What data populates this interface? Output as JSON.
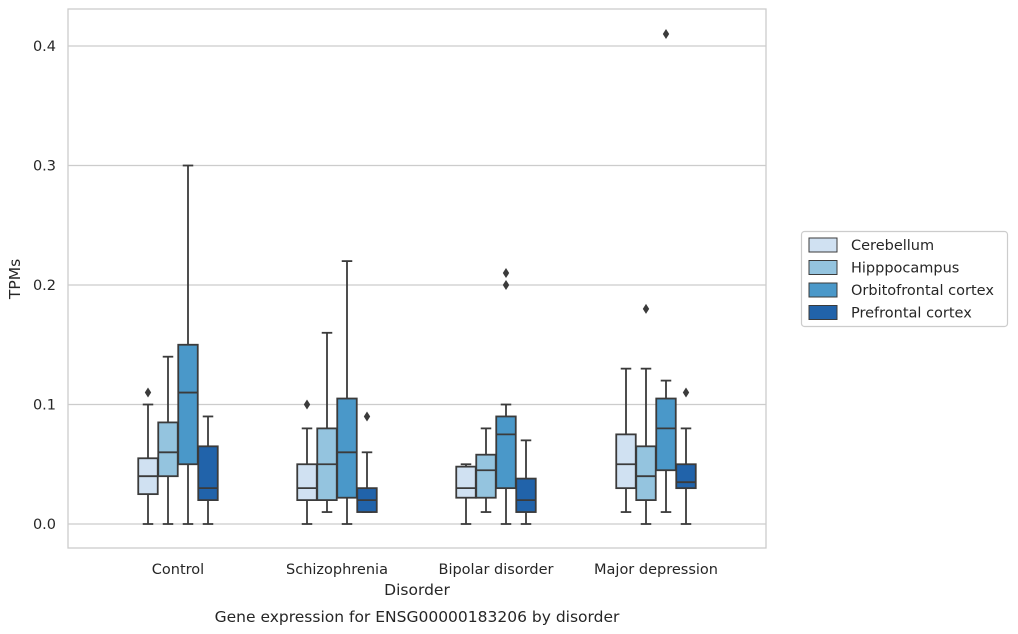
{
  "chart_data": {
    "type": "box",
    "title": "Gene expression for ENSG00000183206 by disorder",
    "xlabel": "Disorder",
    "ylabel": "TPMs",
    "ylim": [
      -0.02,
      0.43
    ],
    "yticks": [
      "0.0",
      "0.1",
      "0.2",
      "0.3",
      "0.4"
    ],
    "ytick_values": [
      0.0,
      0.1,
      0.2,
      0.3,
      0.4
    ],
    "grid": "horizontal",
    "legend_position": "right",
    "categories": [
      "Control",
      "Schizophrenia",
      "Bipolar disorder",
      "Major depression"
    ],
    "series": [
      {
        "name": "Cerebellum",
        "color": "#d0e1f2",
        "boxes": [
          {
            "whislo": 0.0,
            "q1": 0.025,
            "med": 0.04,
            "q3": 0.055,
            "whishi": 0.1,
            "fliers": [
              0.11
            ]
          },
          {
            "whislo": 0.0,
            "q1": 0.02,
            "med": 0.03,
            "q3": 0.05,
            "whishi": 0.08,
            "fliers": [
              0.1
            ]
          },
          {
            "whislo": 0.0,
            "q1": 0.022,
            "med": 0.03,
            "q3": 0.048,
            "whishi": 0.05,
            "fliers": []
          },
          {
            "whislo": 0.01,
            "q1": 0.03,
            "med": 0.05,
            "q3": 0.075,
            "whishi": 0.13,
            "fliers": []
          }
        ]
      },
      {
        "name": "Hipppocampus",
        "color": "#94c4df",
        "boxes": [
          {
            "whislo": 0.0,
            "q1": 0.04,
            "med": 0.06,
            "q3": 0.085,
            "whishi": 0.14,
            "fliers": []
          },
          {
            "whislo": 0.01,
            "q1": 0.02,
            "med": 0.05,
            "q3": 0.08,
            "whishi": 0.16,
            "fliers": []
          },
          {
            "whislo": 0.01,
            "q1": 0.022,
            "med": 0.045,
            "q3": 0.058,
            "whishi": 0.08,
            "fliers": []
          },
          {
            "whislo": 0.0,
            "q1": 0.02,
            "med": 0.04,
            "q3": 0.065,
            "whishi": 0.13,
            "fliers": [
              0.18
            ]
          }
        ]
      },
      {
        "name": "Orbitofrontal cortex",
        "color": "#4a98c9",
        "boxes": [
          {
            "whislo": 0.0,
            "q1": 0.05,
            "med": 0.11,
            "q3": 0.15,
            "whishi": 0.3,
            "fliers": []
          },
          {
            "whislo": 0.0,
            "q1": 0.022,
            "med": 0.06,
            "q3": 0.105,
            "whishi": 0.22,
            "fliers": []
          },
          {
            "whislo": 0.0,
            "q1": 0.03,
            "med": 0.075,
            "q3": 0.09,
            "whishi": 0.1,
            "fliers": [
              0.2,
              0.21
            ]
          },
          {
            "whislo": 0.01,
            "q1": 0.045,
            "med": 0.08,
            "q3": 0.105,
            "whishi": 0.12,
            "fliers": [
              0.41
            ]
          }
        ]
      },
      {
        "name": "Prefrontal cortex",
        "color": "#2163aa",
        "boxes": [
          {
            "whislo": 0.0,
            "q1": 0.02,
            "med": 0.03,
            "q3": 0.065,
            "whishi": 0.09,
            "fliers": []
          },
          {
            "whislo": 0.01,
            "q1": 0.01,
            "med": 0.02,
            "q3": 0.03,
            "whishi": 0.06,
            "fliers": [
              0.09
            ]
          },
          {
            "whislo": 0.0,
            "q1": 0.01,
            "med": 0.02,
            "q3": 0.038,
            "whishi": 0.07,
            "fliers": []
          },
          {
            "whislo": 0.0,
            "q1": 0.03,
            "med": 0.035,
            "q3": 0.05,
            "whishi": 0.08,
            "fliers": [
              0.11
            ]
          }
        ]
      }
    ]
  }
}
